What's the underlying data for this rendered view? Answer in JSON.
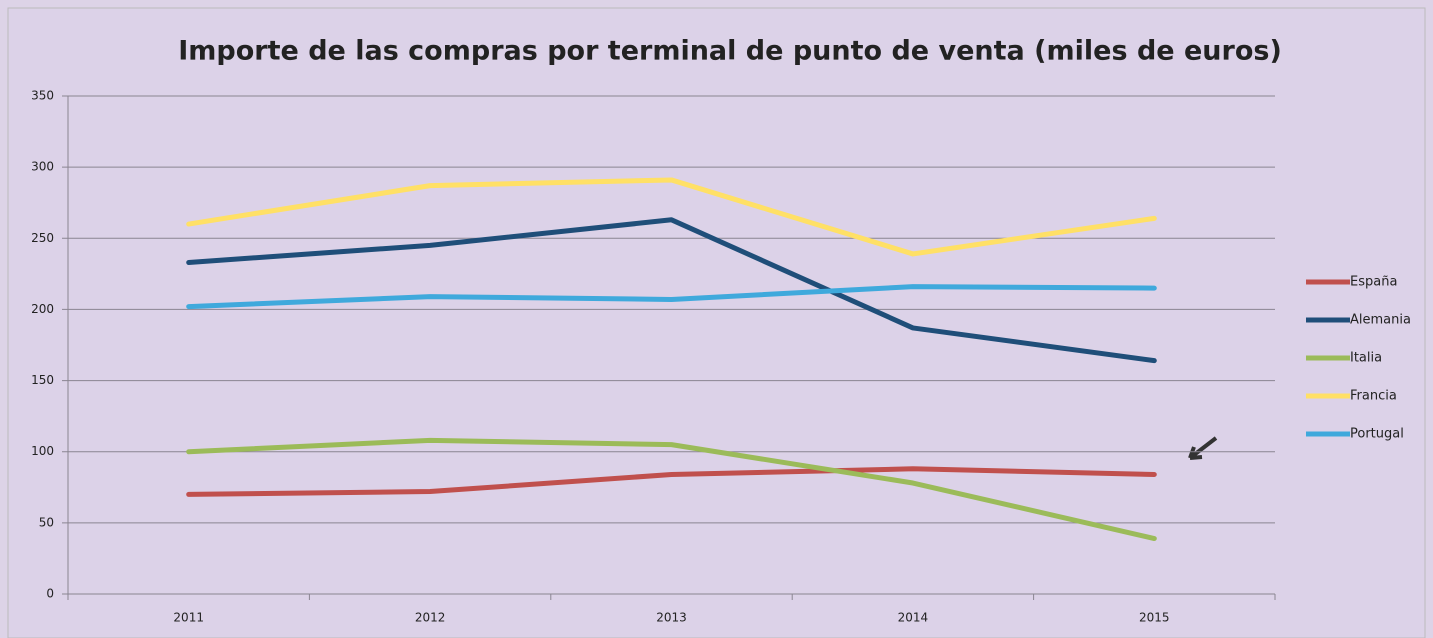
{
  "chart_data": {
    "type": "line",
    "title": "Importe de las compras por terminal de punto de venta (miles de euros)",
    "categories": [
      "2011",
      "2012",
      "2013",
      "2014",
      "2015"
    ],
    "series": [
      {
        "name": "España",
        "color": "#c0504d",
        "values": [
          70,
          72,
          84,
          88,
          84
        ]
      },
      {
        "name": "Alemania",
        "color": "#1f4e79",
        "values": [
          233,
          245,
          263,
          187,
          164
        ]
      },
      {
        "name": "Italia",
        "color": "#9bbb59",
        "values": [
          100,
          108,
          105,
          78,
          39
        ]
      },
      {
        "name": "Francia",
        "color": "#ffe066",
        "values": [
          260,
          287,
          291,
          239,
          264
        ]
      },
      {
        "name": "Portugal",
        "color": "#3fa9dc",
        "values": [
          202,
          209,
          207,
          216,
          215
        ]
      }
    ],
    "ylim": [
      0,
      350
    ],
    "yticks": [
      0,
      50,
      100,
      150,
      200,
      250,
      300,
      350
    ],
    "grid": true,
    "legend": "right"
  }
}
